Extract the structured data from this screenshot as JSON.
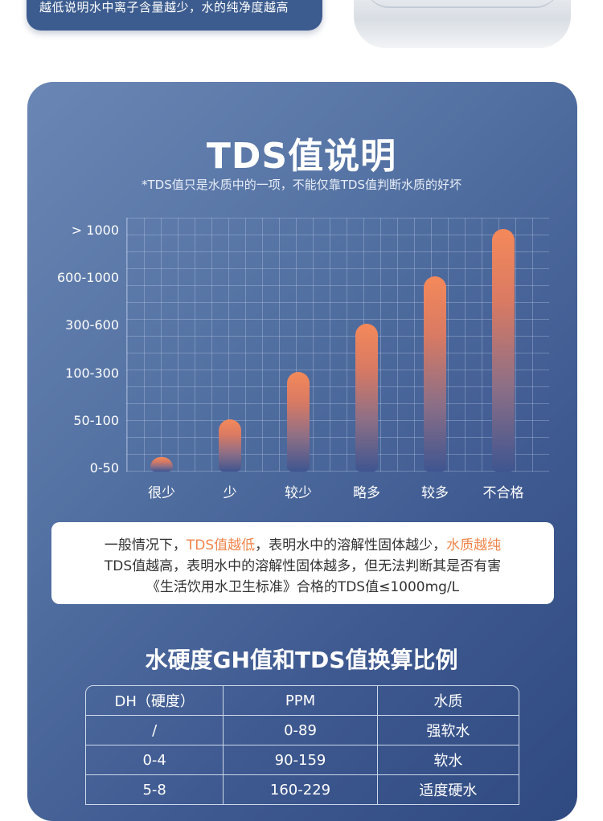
{
  "top_banner": {
    "text": "越低说明水中离子含量越少，水的纯净度越高"
  },
  "section": {
    "title": "TDS值说明",
    "subtitle": "*TDS值只是水质中的一项，不能仅靠TDS值判断水质的好坏"
  },
  "chart_data": {
    "type": "bar",
    "categories": [
      "很少",
      "少",
      "较少",
      "略多",
      "较多",
      "不合格"
    ],
    "values": [
      1,
      2,
      3,
      4,
      5,
      6
    ],
    "y_tick_labels": [
      "0-50",
      "50-100",
      "100-300",
      "300-600",
      "600-1000",
      "> 1000"
    ],
    "grid": true,
    "colors": {
      "bar_top": "#f4895a",
      "bar_bottom": "#3f5590"
    }
  },
  "note": {
    "line1_a": "一般情况下，",
    "line1_b": "TDS值越低",
    "line1_c": "，表明水中的溶解性固体越少，",
    "line1_d": "水质越纯",
    "line2": "TDS值越高，表明水中的溶解性固体越多，但无法判断其是否有害",
    "line3": "《生活饮用水卫生标准》合格的TDS值≤1000mg/L"
  },
  "table": {
    "title": "水硬度GH值和TDS值换算比例",
    "headers": [
      "DH（硬度）",
      "PPM",
      "水质"
    ],
    "rows": [
      [
        "/",
        "0-89",
        "强软水"
      ],
      [
        "0-4",
        "90-159",
        "软水"
      ],
      [
        "5-8",
        "160-229",
        "适度硬水"
      ]
    ]
  },
  "colors": {
    "accent": "#f0854b",
    "card": "#3e5990"
  }
}
